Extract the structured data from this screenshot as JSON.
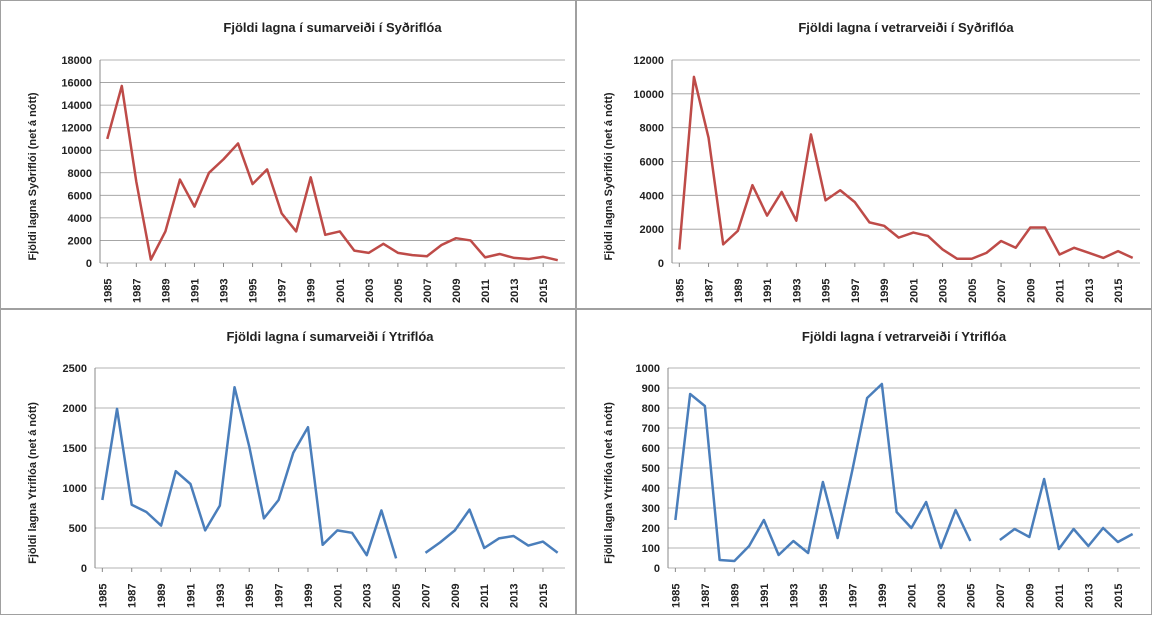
{
  "chart_data": [
    {
      "type": "line",
      "title": "Fjöldi lagna í sumarveiði í Syðriflóa",
      "y_label": "Fjöldi lagna Syðriflói (net á nótt)",
      "color": "#be4b48",
      "x": [
        1985,
        1986,
        1987,
        1988,
        1989,
        1990,
        1991,
        1992,
        1993,
        1994,
        1995,
        1996,
        1997,
        1998,
        1999,
        2000,
        2001,
        2002,
        2003,
        2004,
        2005,
        2006,
        2007,
        2008,
        2009,
        2010,
        2011,
        2012,
        2013,
        2014,
        2015,
        2016
      ],
      "values": [
        11000,
        15700,
        7200,
        300,
        2800,
        7400,
        5000,
        8000,
        9200,
        10600,
        7000,
        8300,
        4400,
        2800,
        7600,
        2500,
        2800,
        1100,
        900,
        1700,
        900,
        700,
        600,
        1600,
        2200,
        2000,
        500,
        800,
        450,
        350,
        550,
        250
      ],
      "xlim": [
        1984.5,
        2016.5
      ],
      "xticks": [
        1985,
        1987,
        1989,
        1991,
        1993,
        1995,
        1997,
        1999,
        2001,
        2003,
        2005,
        2007,
        2009,
        2011,
        2013,
        2015
      ],
      "ylim": [
        0,
        18000
      ],
      "yticks": [
        0,
        2000,
        4000,
        6000,
        8000,
        10000,
        12000,
        14000,
        16000,
        18000
      ],
      "grid": true
    },
    {
      "type": "line",
      "title": "Fjöldi lagna í vetrarveiði í Syðriflóa",
      "y_label": "Fjöldi lagna Syðriflói (net á nótt)",
      "color": "#be4b48",
      "x": [
        1985,
        1986,
        1987,
        1988,
        1989,
        1990,
        1991,
        1992,
        1993,
        1994,
        1995,
        1996,
        1997,
        1998,
        1999,
        2000,
        2001,
        2002,
        2003,
        2004,
        2005,
        2006,
        2007,
        2008,
        2009,
        2010,
        2011,
        2012,
        2013,
        2014,
        2015,
        2016
      ],
      "values": [
        800,
        11000,
        7400,
        1100,
        1900,
        4600,
        2800,
        4200,
        2500,
        7600,
        3700,
        4300,
        3600,
        2400,
        2200,
        1500,
        1800,
        1600,
        800,
        250,
        250,
        600,
        1300,
        900,
        2100,
        2100,
        500,
        900,
        600,
        300,
        700,
        300
      ],
      "xlim": [
        1984.5,
        2016.5
      ],
      "xticks": [
        1985,
        1987,
        1989,
        1991,
        1993,
        1995,
        1997,
        1999,
        2001,
        2003,
        2005,
        2007,
        2009,
        2011,
        2013,
        2015
      ],
      "ylim": [
        0,
        12000
      ],
      "yticks": [
        0,
        2000,
        4000,
        6000,
        8000,
        10000,
        12000
      ],
      "grid": true
    },
    {
      "type": "line",
      "title": "Fjöldi lagna í sumarveiði í Ytriflóa",
      "y_label": "Fjöldi lagna Ytriflóa (net á nótt)",
      "color": "#4a7ebb",
      "x": [
        1985,
        1986,
        1987,
        1988,
        1989,
        1990,
        1991,
        1992,
        1993,
        1994,
        1995,
        1996,
        1997,
        1998,
        1999,
        2000,
        2001,
        2002,
        2003,
        2004,
        2005,
        2006,
        2007,
        2008,
        2009,
        2010,
        2011,
        2012,
        2013,
        2014,
        2015,
        2016
      ],
      "values": [
        850,
        1990,
        790,
        700,
        530,
        1210,
        1050,
        470,
        780,
        2260,
        1520,
        620,
        850,
        1440,
        1760,
        290,
        470,
        440,
        160,
        720,
        120,
        null,
        190,
        320,
        470,
        730,
        250,
        370,
        400,
        280,
        330,
        190
      ],
      "xlim": [
        1984.5,
        2016.5
      ],
      "xticks": [
        1985,
        1987,
        1989,
        1991,
        1993,
        1995,
        1997,
        1999,
        2001,
        2003,
        2005,
        2007,
        2009,
        2011,
        2013,
        2015
      ],
      "ylim": [
        0,
        2500
      ],
      "yticks": [
        0,
        500,
        1000,
        1500,
        2000,
        2500
      ],
      "grid": true
    },
    {
      "type": "line",
      "title": "Fjöldi lagna í vetrarveiði í Ytriflóa",
      "y_label": "Fjöldi lagna Ytriflóa (net á nótt)",
      "color": "#4a7ebb",
      "x": [
        1985,
        1986,
        1987,
        1988,
        1989,
        1990,
        1991,
        1992,
        1993,
        1994,
        1995,
        1996,
        1997,
        1998,
        1999,
        2000,
        2001,
        2002,
        2003,
        2004,
        2005,
        2006,
        2007,
        2008,
        2009,
        2010,
        2011,
        2012,
        2013,
        2014,
        2015,
        2016
      ],
      "values": [
        240,
        870,
        810,
        40,
        35,
        110,
        240,
        65,
        135,
        75,
        430,
        150,
        490,
        850,
        920,
        280,
        200,
        330,
        100,
        290,
        135,
        null,
        140,
        195,
        155,
        445,
        95,
        195,
        110,
        200,
        130,
        170
      ],
      "xlim": [
        1984.5,
        2016.5
      ],
      "xticks": [
        1985,
        1987,
        1989,
        1991,
        1993,
        1995,
        1997,
        1999,
        2001,
        2003,
        2005,
        2007,
        2009,
        2011,
        2013,
        2015
      ],
      "ylim": [
        0,
        1000
      ],
      "yticks": [
        0,
        100,
        200,
        300,
        400,
        500,
        600,
        700,
        800,
        900,
        1000
      ],
      "grid": true
    }
  ]
}
